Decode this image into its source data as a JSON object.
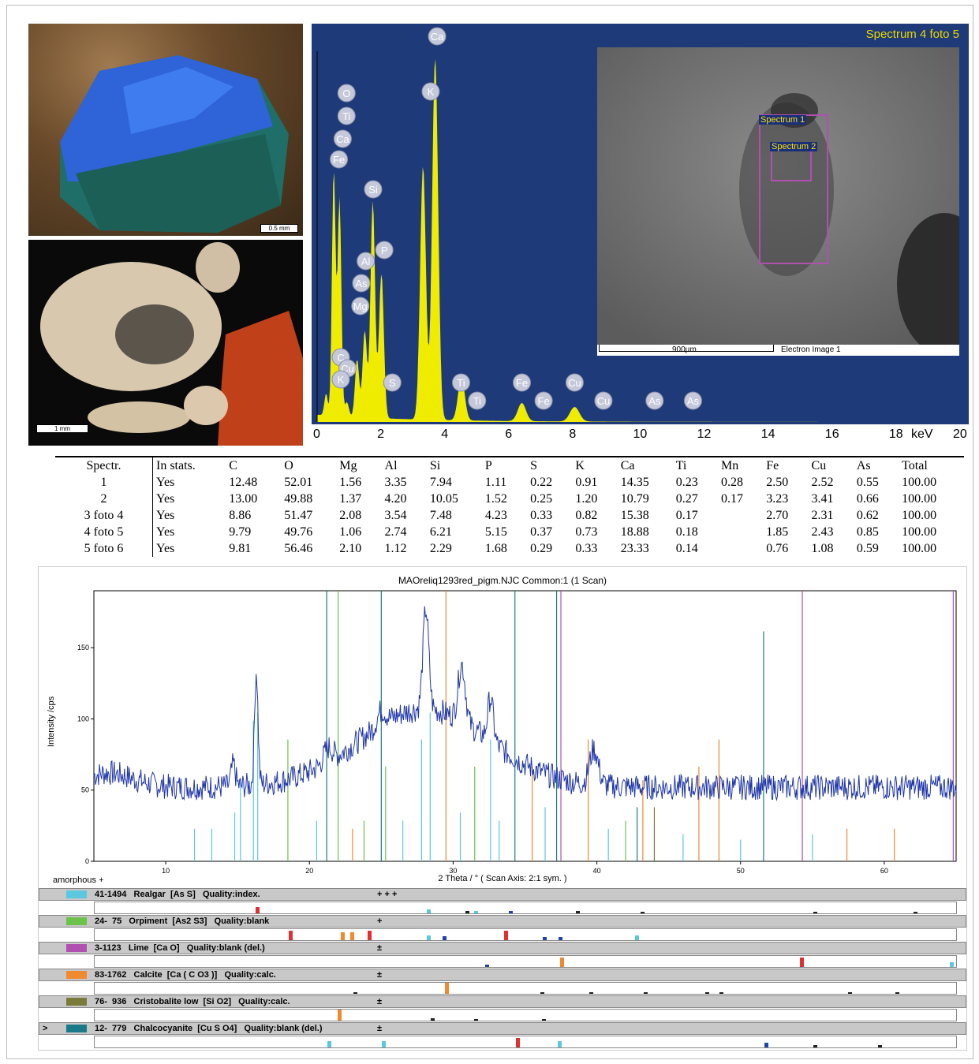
{
  "photos": {
    "top_scale_label": "0.5 mm",
    "bottom_scale_label": "1 mm"
  },
  "eds": {
    "title": "Spectrum 4 foto 5",
    "x_ticks": [
      "0",
      "2",
      "4",
      "6",
      "8",
      "10",
      "12",
      "14",
      "16",
      "18",
      "20"
    ],
    "x_unit": "keV",
    "peaks": [
      {
        "label": "Ca",
        "x": 3.69,
        "y": 1.0
      },
      {
        "label": "K",
        "x": 3.31,
        "y": 0.7
      },
      {
        "label": "O",
        "x": 0.52,
        "y": 0.68
      },
      {
        "label": "Fe",
        "x": 0.7,
        "y": 0.6
      },
      {
        "label": "Si",
        "x": 1.74,
        "y": 0.6
      },
      {
        "label": "P",
        "x": 2.01,
        "y": 0.4
      },
      {
        "label": "Al",
        "x": 1.49,
        "y": 0.24
      },
      {
        "label": "Mg",
        "x": 1.25,
        "y": 0.16
      },
      {
        "label": "C",
        "x": 0.28,
        "y": 0.06
      },
      {
        "label": "Cu",
        "x": 0.93,
        "y": 0.04
      },
      {
        "label": "Ti",
        "x": 4.51,
        "y": 0.12
      },
      {
        "label": "Fe",
        "x": 6.4,
        "y": 0.05
      },
      {
        "label": "Cu",
        "x": 8.05,
        "y": 0.04
      }
    ],
    "peak_labels": [
      {
        "label": "Ca",
        "kev": 3.75,
        "row": 0
      },
      {
        "label": "K",
        "kev": 3.55,
        "row": 1
      },
      {
        "label": "O",
        "kev": 0.5,
        "row": 2
      },
      {
        "label": "Ti",
        "kev": 0.5,
        "row": 3
      },
      {
        "label": "Ca",
        "kev": 0.38,
        "row": 4
      },
      {
        "label": "Fe",
        "kev": 0.68,
        "row": 5
      },
      {
        "label": "Si",
        "kev": 1.75,
        "row": 6
      },
      {
        "label": "P",
        "kev": 2.1,
        "row": 7
      },
      {
        "label": "Al",
        "kev": 1.52,
        "row": 8
      },
      {
        "label": "As",
        "kev": 1.38,
        "row": 9
      },
      {
        "label": "Mg",
        "kev": 1.35,
        "row": 10
      },
      {
        "label": "C",
        "kev": 0.32,
        "row": 11
      },
      {
        "label": "Cu",
        "kev": 0.95,
        "row": 12
      },
      {
        "label": "K",
        "kev": 0.32,
        "row": 13
      },
      {
        "label": "S",
        "kev": 2.35,
        "row": 14
      },
      {
        "label": "Ti",
        "kev": 4.5,
        "row": 14
      },
      {
        "label": "Ti",
        "kev": 5.0,
        "row": 15
      },
      {
        "label": "Fe",
        "kev": 6.4,
        "row": 14
      },
      {
        "label": "Fe",
        "kev": 7.08,
        "row": 15
      },
      {
        "label": "Cu",
        "kev": 8.05,
        "row": 14
      },
      {
        "label": "Cu",
        "kev": 8.95,
        "row": 15
      },
      {
        "label": "As",
        "kev": 10.55,
        "row": 15
      },
      {
        "label": "As",
        "kev": 11.75,
        "row": 15
      }
    ],
    "sem": {
      "spectrum1": "Spectrum 1",
      "spectrum2": "Spectrum 2",
      "scale_label": "900µm",
      "image_label": "Electron Image 1"
    }
  },
  "composition_table": {
    "headers": [
      "Spectr.",
      "In stats.",
      "C",
      "O",
      "Mg",
      "Al",
      "Si",
      "P",
      "S",
      "K",
      "Ca",
      "Ti",
      "Mn",
      "Fe",
      "Cu",
      "As",
      "Total"
    ],
    "rows": [
      [
        "1",
        "Yes",
        "12.48",
        "52.01",
        "1.56",
        "3.35",
        "7.94",
        "1.11",
        "0.22",
        "0.91",
        "14.35",
        "0.23",
        "0.28",
        "2.50",
        "2.52",
        "0.55",
        "100.00"
      ],
      [
        "2",
        "Yes",
        "13.00",
        "49.88",
        "1.37",
        "4.20",
        "10.05",
        "1.52",
        "0.25",
        "1.20",
        "10.79",
        "0.27",
        "0.17",
        "3.23",
        "3.41",
        "0.66",
        "100.00"
      ],
      [
        "3 foto 4",
        "Yes",
        "8.86",
        "51.47",
        "2.08",
        "3.54",
        "7.48",
        "4.23",
        "0.33",
        "0.82",
        "15.38",
        "0.17",
        "",
        "2.70",
        "2.31",
        "0.62",
        "100.00"
      ],
      [
        "4 foto 5",
        "Yes",
        "9.79",
        "49.76",
        "1.06",
        "2.74",
        "6.21",
        "5.15",
        "0.37",
        "0.73",
        "18.88",
        "0.18",
        "",
        "1.85",
        "2.43",
        "0.85",
        "100.00"
      ],
      [
        "5 foto 6",
        "Yes",
        "9.81",
        "56.46",
        "2.10",
        "1.12",
        "2.29",
        "1.68",
        "0.29",
        "0.33",
        "23.33",
        "0.14",
        "",
        "0.76",
        "1.08",
        "0.59",
        "100.00"
      ]
    ]
  },
  "xrd": {
    "title": "MAOreliq1293red_pigm.NJC Common:1 (1 Scan)",
    "ylabel": "Intensity /cps",
    "xlabel": "2 Theta / °   ( Scan Axis: 2:1 sym. )",
    "y_ticks": [
      "0",
      "50",
      "100",
      "150"
    ],
    "x_ticks": [
      "10",
      "20",
      "30",
      "40",
      "50",
      "60"
    ],
    "amorphous_label": "amorphous +",
    "phases": [
      {
        "id": "41-1494",
        "text": "41-1494   Realgar  [As S]   Quality:index.",
        "stars": "+ + +",
        "color": "#5bc8e0"
      },
      {
        "id": "24-75",
        "text": "24-  75   Orpiment  [As2 S3]   Quality:blank",
        "stars": "+",
        "color": "#6cc24a"
      },
      {
        "id": "3-1123",
        "text": "3-1123   Lime  [Ca O]   Quality:blank (del.)",
        "stars": "±",
        "color": "#b050b0"
      },
      {
        "id": "83-1762",
        "text": "83-1762   Calcite  [Ca ( C O3 )]   Quality:calc.",
        "stars": "±",
        "color": "#f08a30"
      },
      {
        "id": "76-936",
        "text": "76-  936   Cristobalite low  [Si O2]   Quality:calc.",
        "stars": "±",
        "color": "#7a7a3a"
      },
      {
        "id": "12-779",
        "text": "12-  779   Chalcocyanite  [Cu S O4]   Quality:blank (del.)",
        "stars": "±",
        "color": "#1a7a8a"
      }
    ],
    "expand_marker": ">"
  }
}
